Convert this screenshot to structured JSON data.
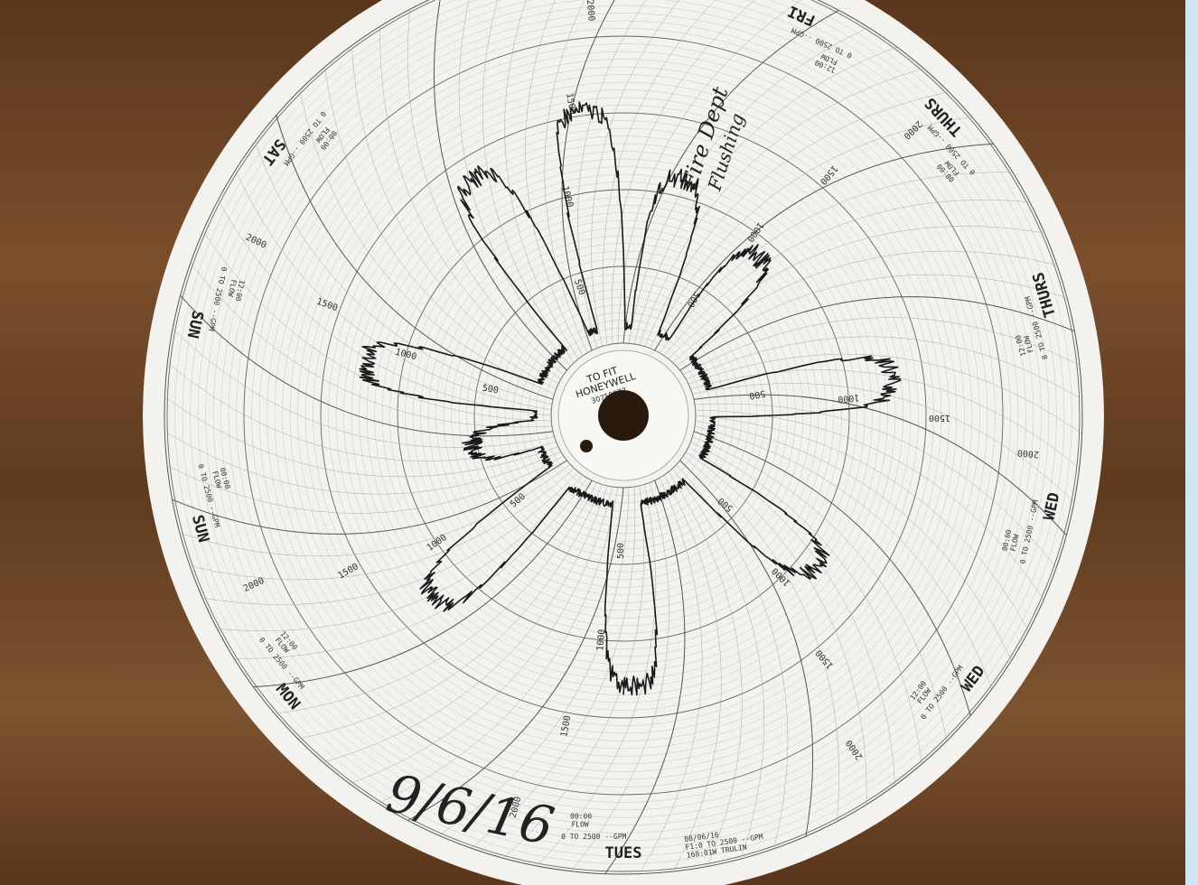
{
  "center_label": {
    "line1": "TO FIT",
    "line2": "HONEYWELL",
    "part_number": "30755377"
  },
  "handwritten": {
    "date": "9/6/16",
    "note_line1": "Fire Dept",
    "note_line2": "Flushing"
  },
  "day_labels": [
    "SAT",
    "SUN",
    "SUN",
    "MON",
    "TUES",
    "WED",
    "WED",
    "THURS",
    "THURS",
    "FRI"
  ],
  "range_label": "0 TO 2500 --GPM",
  "flow_label": "FLOW",
  "time_labels": [
    "00:00",
    "12:00"
  ],
  "scale_values": [
    "500",
    "1000",
    "1500",
    "2000"
  ],
  "stamp": [
    "08/06/16",
    "F1:0 TO 2500 --GPM",
    "168:01W TRULIN"
  ]
}
